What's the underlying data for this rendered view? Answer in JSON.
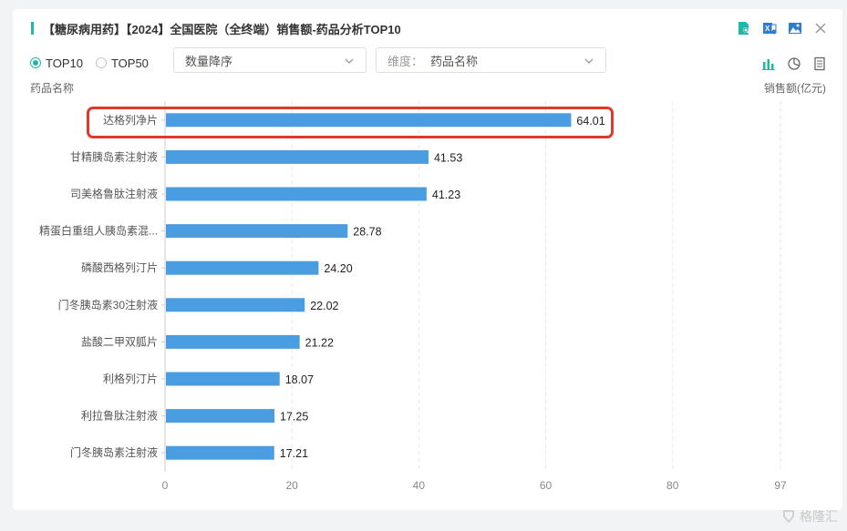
{
  "header": {
    "title": "【糖尿病用药】【2024】全国医院（全终端）销售额-药品分析TOP10",
    "tools": [
      "search-doc-icon",
      "excel-icon",
      "image-icon",
      "close-icon"
    ]
  },
  "controls": {
    "radios": [
      {
        "label": "TOP10",
        "selected": true
      },
      {
        "label": "TOP50",
        "selected": false
      }
    ],
    "sort_select": {
      "value": "数量降序"
    },
    "dimension_select": {
      "prefix": "维度：",
      "value": "药品名称"
    },
    "view_tools": [
      "bar-chart-icon",
      "pie-chart-icon",
      "table-icon"
    ]
  },
  "watermark": {
    "text": "格隆汇"
  },
  "colors": {
    "bar": "#4a9de0",
    "accent": "#1fb8a6",
    "highlight": "#e0382b"
  },
  "chart_data": {
    "type": "bar",
    "orientation": "horizontal",
    "ylabel": "药品名称",
    "xlabel": "销售额(亿元)",
    "categories": [
      "达格列净片",
      "甘精胰岛素注射液",
      "司美格鲁肽注射液",
      "精蛋白重组人胰岛素混...",
      "磷酸西格列汀片",
      "门冬胰岛素30注射液",
      "盐酸二甲双胍片",
      "利格列汀片",
      "利拉鲁肽注射液",
      "门冬胰岛素注射液"
    ],
    "values": [
      64.01,
      41.53,
      41.23,
      28.78,
      24.2,
      22.02,
      21.22,
      18.07,
      17.25,
      17.21
    ],
    "value_labels": [
      "64.01",
      "41.53",
      "41.23",
      "28.78",
      "24.20",
      "22.02",
      "21.22",
      "18.07",
      "17.25",
      "17.21"
    ],
    "xticks": [
      "0",
      "20",
      "40",
      "60",
      "80",
      "97"
    ],
    "xtick_values": [
      0,
      20,
      40,
      60,
      80,
      97
    ],
    "xlim": [
      0,
      97
    ],
    "grid": true,
    "highlighted_category": "达格列净片"
  }
}
